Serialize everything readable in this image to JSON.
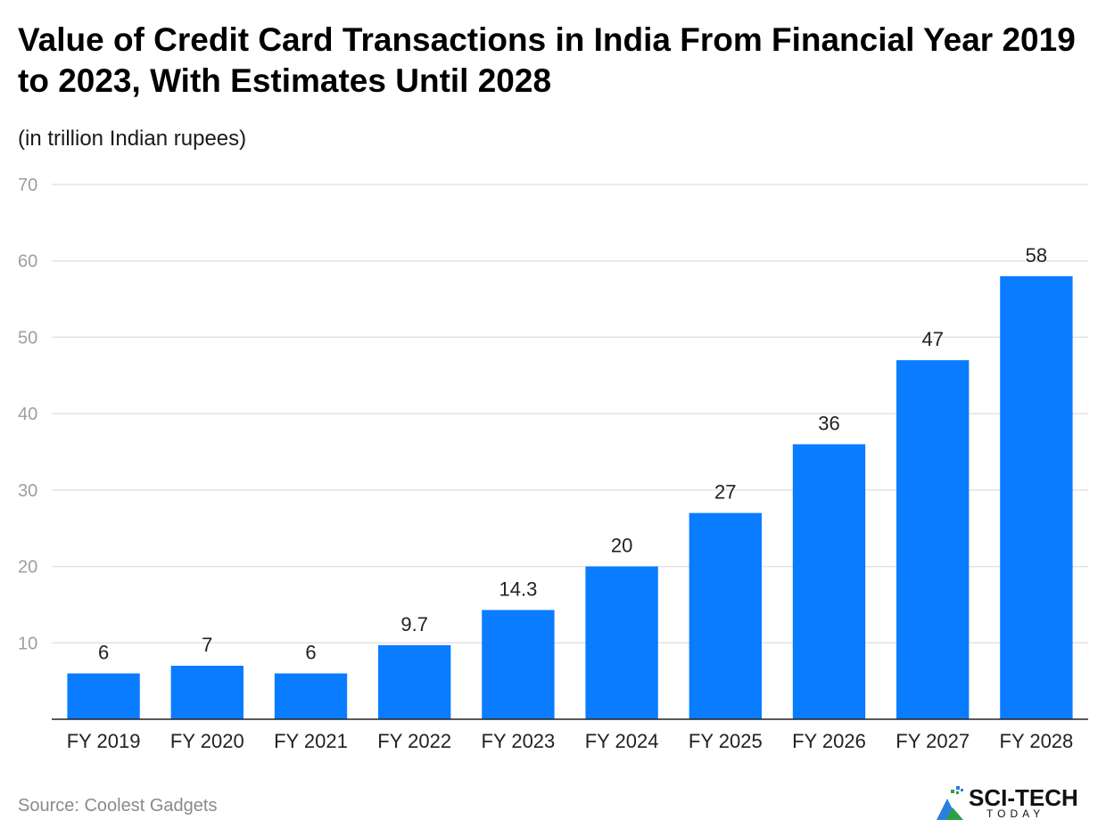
{
  "title": "Value of Credit Card Transactions in India From Financial Year 2019 to 2023, With Estimates Until 2028",
  "subtitle": "(in trillion Indian rupees)",
  "source": "Source: Coolest Gadgets",
  "logo": {
    "name": "SCI-TECH",
    "tagline": "TODAY",
    "icon": "sci-tech-logo-icon"
  },
  "colors": {
    "bar": "#0a7cff",
    "grid": "#e3e3e3",
    "axis": "#222222"
  },
  "chart_data": {
    "type": "bar",
    "categories": [
      "FY 2019",
      "FY 2020",
      "FY 2021",
      "FY 2022",
      "FY 2023",
      "FY 2024",
      "FY 2025",
      "FY 2026",
      "FY 2027",
      "FY 2028"
    ],
    "values": [
      6,
      7,
      6,
      9.7,
      14.3,
      20,
      27,
      36,
      47,
      58
    ],
    "value_labels": [
      "6",
      "7",
      "6",
      "9.7",
      "14.3",
      "20",
      "27",
      "36",
      "47",
      "58"
    ],
    "ylim": [
      0,
      70
    ],
    "yticks": [
      10,
      20,
      30,
      40,
      50,
      60,
      70
    ],
    "grid": true,
    "xlabel": "",
    "ylabel": ""
  }
}
